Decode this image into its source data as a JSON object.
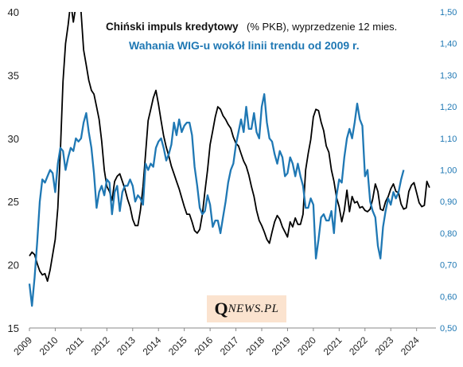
{
  "chart_data": {
    "type": "line",
    "title": {
      "line1_bold": "Chiński impuls kredytowy",
      "line1_rest": "(% PKB), wyprzedzenie 12 mies.",
      "line2": "Wahania  WIG-u wokół linii trendu od 2009 r."
    },
    "left_axis": {
      "ticks": [
        "15",
        "20",
        "25",
        "30",
        "35",
        "40"
      ],
      "ylim": [
        15,
        40
      ],
      "color": "#222222"
    },
    "right_axis": {
      "ticks": [
        "0,50",
        "0,60",
        "0,70",
        "0,80",
        "0,90",
        "1,00",
        "1,10",
        "1,20",
        "1,30",
        "1,40",
        "1,50"
      ],
      "ylim": [
        0.5,
        1.5
      ],
      "color": "#1f78b4"
    },
    "x_ticks": [
      "2009",
      "2010",
      "2011",
      "2012",
      "2013",
      "2014",
      "2015",
      "2016",
      "2017",
      "2018",
      "2019",
      "2020",
      "2021",
      "2022",
      "2023",
      "2024"
    ],
    "xlim": [
      2009,
      2024.75
    ],
    "grid": false,
    "series": [
      {
        "name": "Chiński impuls kredytowy",
        "axis": "left",
        "color": "#000000",
        "x": [
          2009.0,
          2009.1,
          2009.2,
          2009.3,
          2009.4,
          2009.5,
          2009.6,
          2009.7,
          2009.8,
          2009.9,
          2010.0,
          2010.1,
          2010.2,
          2010.3,
          2010.4,
          2010.5,
          2010.6,
          2010.7,
          2010.8,
          2010.9,
          2011.0,
          2011.1,
          2011.2,
          2011.3,
          2011.4,
          2011.5,
          2011.6,
          2011.7,
          2011.8,
          2011.9,
          2012.0,
          2012.1,
          2012.2,
          2012.3,
          2012.4,
          2012.5,
          2012.6,
          2012.7,
          2012.8,
          2012.9,
          2013.0,
          2013.1,
          2013.2,
          2013.3,
          2013.4,
          2013.5,
          2013.6,
          2013.7,
          2013.8,
          2013.9,
          2014.0,
          2014.1,
          2014.2,
          2014.3,
          2014.4,
          2014.5,
          2014.6,
          2014.7,
          2014.8,
          2014.9,
          2015.0,
          2015.1,
          2015.2,
          2015.3,
          2015.4,
          2015.5,
          2015.6,
          2015.7,
          2015.8,
          2015.9,
          2016.0,
          2016.1,
          2016.2,
          2016.3,
          2016.4,
          2016.5,
          2016.6,
          2016.7,
          2016.8,
          2016.9,
          2017.0,
          2017.1,
          2017.2,
          2017.3,
          2017.4,
          2017.5,
          2017.6,
          2017.7,
          2017.8,
          2017.9,
          2018.0,
          2018.1,
          2018.2,
          2018.3,
          2018.4,
          2018.5,
          2018.6,
          2018.7,
          2018.8,
          2018.9,
          2019.0,
          2019.1,
          2019.2,
          2019.3,
          2019.4,
          2019.5,
          2019.6,
          2019.7,
          2019.8,
          2019.9,
          2020.0,
          2020.1,
          2020.2,
          2020.3,
          2020.4,
          2020.5,
          2020.6,
          2020.7,
          2020.8,
          2020.9,
          2021.0,
          2021.1,
          2021.2,
          2021.3,
          2021.4,
          2021.5,
          2021.6,
          2021.7,
          2021.8,
          2021.9,
          2022.0,
          2022.1,
          2022.2,
          2022.3,
          2022.4,
          2022.5,
          2022.6,
          2022.7,
          2022.8,
          2022.9,
          2023.0,
          2023.1,
          2023.2,
          2023.3,
          2023.4,
          2023.5,
          2023.6,
          2023.7,
          2023.8,
          2023.9,
          2024.0,
          2024.1,
          2024.2,
          2024.3
        ],
        "values": [
          20.7,
          21.0,
          20.8,
          20.1,
          19.5,
          19.2,
          19.3,
          18.7,
          19.6,
          20.8,
          22.0,
          24.5,
          29.0,
          34.5,
          37.5,
          39.0,
          40.8,
          39.2,
          40.5,
          41.5,
          40.0,
          37.0,
          35.8,
          34.6,
          33.8,
          33.5,
          32.5,
          31.5,
          29.8,
          27.5,
          26.2,
          25.8,
          25.1,
          26.6,
          27.0,
          27.2,
          26.6,
          26.0,
          25.2,
          24.6,
          23.6,
          23.1,
          23.1,
          24.3,
          26.2,
          28.8,
          31.4,
          32.3,
          33.2,
          33.8,
          32.7,
          31.4,
          30.2,
          29.3,
          28.6,
          27.8,
          27.2,
          26.6,
          26.0,
          25.3,
          24.6,
          24.0,
          24.0,
          23.4,
          22.7,
          22.5,
          22.8,
          24.0,
          25.8,
          27.5,
          29.5,
          30.6,
          31.7,
          32.5,
          32.3,
          31.8,
          31.5,
          31.1,
          30.8,
          30.1,
          29.6,
          29.4,
          28.8,
          28.2,
          27.8,
          27.1,
          26.2,
          25.4,
          24.3,
          23.5,
          23.1,
          22.6,
          22.0,
          21.7,
          22.6,
          23.4,
          23.9,
          23.6,
          23.0,
          22.6,
          22.2,
          23.4,
          23.0,
          23.7,
          23.2,
          23.2,
          24.0,
          27.5,
          28.8,
          29.9,
          31.7,
          32.3,
          32.2,
          31.3,
          30.6,
          29.4,
          28.9,
          27.5,
          26.6,
          25.3,
          24.6,
          23.4,
          24.3,
          25.9,
          24.2,
          25.4,
          24.9,
          25.0,
          24.5,
          24.6,
          24.3,
          24.2,
          24.4,
          25.2,
          26.4,
          25.8,
          24.4,
          24.3,
          25.0,
          25.4,
          26.0,
          26.4,
          25.8,
          25.7,
          24.8,
          24.4,
          24.5,
          25.8,
          26.3,
          26.5,
          25.7,
          24.9,
          24.6,
          24.7
        ],
        "note_tail": "end at ~26.1"
      },
      {
        "name": "Wahania WIG-u wokół linii trendu od 2009 r.",
        "axis": "right",
        "color": "#1f78b4",
        "x": [
          2009.0,
          2009.1,
          2009.2,
          2009.3,
          2009.4,
          2009.5,
          2009.6,
          2009.7,
          2009.8,
          2009.9,
          2010.0,
          2010.1,
          2010.2,
          2010.3,
          2010.4,
          2010.5,
          2010.6,
          2010.7,
          2010.8,
          2010.9,
          2011.0,
          2011.1,
          2011.2,
          2011.3,
          2011.4,
          2011.5,
          2011.6,
          2011.7,
          2011.8,
          2011.9,
          2012.0,
          2012.1,
          2012.2,
          2012.3,
          2012.4,
          2012.5,
          2012.6,
          2012.7,
          2012.8,
          2012.9,
          2013.0,
          2013.1,
          2013.2,
          2013.3,
          2013.4,
          2013.5,
          2013.6,
          2013.7,
          2013.8,
          2013.9,
          2014.0,
          2014.1,
          2014.2,
          2014.3,
          2014.4,
          2014.5,
          2014.6,
          2014.7,
          2014.8,
          2014.9,
          2015.0,
          2015.1,
          2015.2,
          2015.3,
          2015.4,
          2015.5,
          2015.6,
          2015.7,
          2015.8,
          2015.9,
          2016.0,
          2016.1,
          2016.2,
          2016.3,
          2016.4,
          2016.5,
          2016.6,
          2016.7,
          2016.8,
          2016.9,
          2017.0,
          2017.1,
          2017.2,
          2017.3,
          2017.4,
          2017.5,
          2017.6,
          2017.7,
          2017.8,
          2017.9,
          2018.0,
          2018.1,
          2018.2,
          2018.3,
          2018.4,
          2018.5,
          2018.6,
          2018.7,
          2018.8,
          2018.9,
          2019.0,
          2019.1,
          2019.2,
          2019.3,
          2019.4,
          2019.5,
          2019.6,
          2019.7,
          2019.8,
          2019.9,
          2020.0,
          2020.1,
          2020.2,
          2020.3,
          2020.4,
          2020.5,
          2020.6,
          2020.7,
          2020.8,
          2020.9,
          2021.0,
          2021.1,
          2021.2,
          2021.3,
          2021.4,
          2021.5,
          2021.6,
          2021.7,
          2021.8,
          2021.9,
          2022.0,
          2022.1,
          2022.2,
          2022.3,
          2022.4,
          2022.5,
          2022.6,
          2022.7,
          2022.8,
          2022.9,
          2023.0,
          2023.1,
          2023.2,
          2023.3,
          2023.4,
          2023.5
        ],
        "values": [
          0.64,
          0.57,
          0.66,
          0.77,
          0.9,
          0.97,
          0.96,
          0.98,
          1.0,
          0.99,
          0.93,
          1.02,
          1.07,
          1.06,
          1.0,
          1.04,
          1.07,
          1.06,
          1.1,
          1.09,
          1.1,
          1.15,
          1.18,
          1.12,
          1.07,
          0.99,
          0.88,
          0.93,
          0.95,
          0.92,
          0.97,
          0.96,
          0.86,
          0.93,
          0.95,
          0.87,
          0.93,
          0.95,
          0.95,
          0.97,
          0.95,
          0.9,
          0.92,
          0.91,
          0.89,
          1.02,
          1.0,
          1.02,
          1.01,
          1.07,
          1.09,
          1.1,
          1.07,
          1.03,
          1.05,
          1.08,
          1.15,
          1.11,
          1.16,
          1.12,
          1.14,
          1.15,
          1.15,
          1.11,
          1.01,
          0.95,
          0.88,
          0.86,
          0.87,
          0.92,
          0.89,
          0.82,
          0.84,
          0.84,
          0.8,
          0.85,
          0.9,
          0.96,
          1.0,
          1.02,
          1.08,
          1.12,
          1.16,
          1.12,
          1.2,
          1.13,
          1.13,
          1.18,
          1.12,
          1.1,
          1.2,
          1.24,
          1.15,
          1.1,
          1.09,
          1.05,
          1.02,
          1.06,
          1.04,
          0.98,
          0.99,
          1.04,
          1.02,
          0.98,
          1.02,
          0.98,
          0.95,
          0.88,
          0.88,
          0.91,
          0.89,
          0.72,
          0.78,
          0.85,
          0.86,
          0.84,
          0.84,
          0.87,
          0.8,
          0.92,
          0.97,
          0.96,
          1.04,
          1.1,
          1.13,
          1.1,
          1.15,
          1.21,
          1.16,
          1.14,
          0.98,
          1.0,
          0.9,
          0.87,
          0.85,
          0.76,
          0.72,
          0.82,
          0.87,
          0.91,
          0.89,
          0.93,
          0.91,
          0.93,
          0.97,
          1.0
        ]
      }
    ]
  },
  "logo": {
    "q": "Q",
    "rest": "NEWS.PL"
  }
}
